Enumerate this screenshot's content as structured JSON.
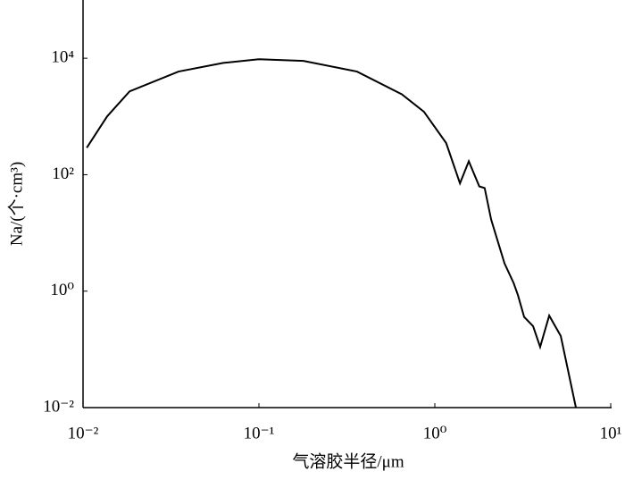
{
  "chart_data": {
    "type": "line",
    "x_label": "气溶胶半径/μm",
    "y_label": "Na/(个·cm³)",
    "x": [
      0.0105,
      0.0137,
      0.0184,
      0.0349,
      0.0627,
      0.1,
      0.179,
      0.361,
      0.649,
      0.868,
      1.16,
      1.39,
      1.56,
      1.79,
      1.92,
      2.09,
      2.49,
      2.8,
      2.97,
      3.22,
      3.62,
      3.97,
      4.47,
      5.2,
      6.34
    ],
    "series": [
      {
        "color": "#000000",
        "values": [
          290,
          1000,
          2700,
          5900,
          8300,
          9600,
          9000,
          5900,
          2400,
          1200,
          350,
          71,
          170,
          63,
          59,
          17,
          3.0,
          1.4,
          0.85,
          0.36,
          0.25,
          0.11,
          0.38,
          0.17,
          0.01
        ]
      }
    ],
    "xlim": [
      0.01,
      10
    ],
    "ylim": [
      0.01,
      100000
    ],
    "x_log": true,
    "y_log": true,
    "xticks": [
      {
        "value": 0.01,
        "label": "10⁻²"
      },
      {
        "value": 0.1,
        "label": "10⁻¹"
      },
      {
        "value": 1,
        "label": "10⁰"
      },
      {
        "value": 10,
        "label": "10¹"
      }
    ],
    "yticks": [
      {
        "value": 0.01,
        "label": "10⁻²"
      },
      {
        "value": 1,
        "label": "10⁰"
      },
      {
        "value": 100,
        "label": "10²"
      },
      {
        "value": 10000,
        "label": "10⁴"
      }
    ],
    "grid": false
  }
}
